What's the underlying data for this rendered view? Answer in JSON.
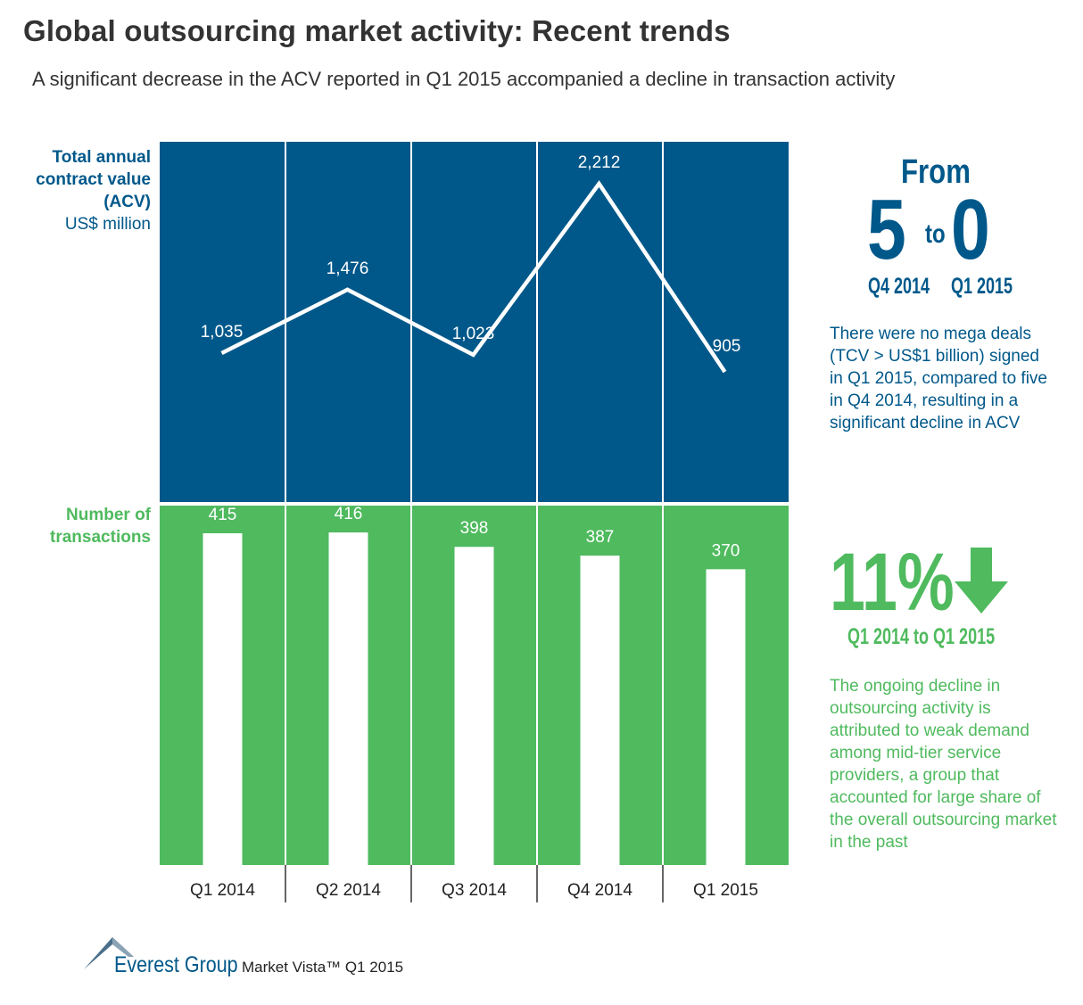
{
  "header": {
    "title": "Global outsourcing market activity: Recent trends",
    "subtitle": "A significant decrease in the ACV reported in Q1 2015 accompanied a decline in transaction activity"
  },
  "colors": {
    "acv_panel": "#00588a",
    "transactions_panel": "#4fba5e",
    "mark": "#ffffff"
  },
  "chart_data": [
    {
      "type": "line",
      "label_lines": [
        "Total annual",
        "contract value",
        "(ACV)"
      ],
      "unit": "US$ million",
      "categories": [
        "Q1 2014",
        "Q2 2014",
        "Q3 2014",
        "Q4 2014",
        "Q1 2015"
      ],
      "values": [
        1035,
        1476,
        1023,
        2212,
        905
      ],
      "data_labels": [
        "1,035",
        "1,476",
        "1,023",
        "2,212",
        "905"
      ]
    },
    {
      "type": "bar",
      "label_lines": [
        "Number of",
        "transactions"
      ],
      "categories": [
        "Q1 2014",
        "Q2 2014",
        "Q3 2014",
        "Q4 2014",
        "Q1 2015"
      ],
      "values": [
        415,
        416,
        398,
        387,
        370
      ],
      "data_labels": [
        "415",
        "416",
        "398",
        "387",
        "370"
      ]
    }
  ],
  "mega_deals": {
    "from_word": "From",
    "from_value": "5",
    "to_word": "to",
    "to_value": "0",
    "from_quarter": "Q4 2014",
    "to_quarter": "Q1 2015",
    "note": "There were no mega deals (TCV > US$1 billion) signed in Q1 2015, compared to five in Q4 2014, resulting in a significant decline in ACV"
  },
  "transaction_change": {
    "percent": "11%",
    "direction_icon": "down-arrow-icon",
    "range": "Q1 2014  to  Q1 2015",
    "note": "The ongoing decline in outsourcing activity is attributed to weak demand among mid-tier service providers, a group that accounted for large share of the overall outsourcing market in the past"
  },
  "footer": {
    "brand": "Everest Group",
    "source": "Market Vista™ Q1 2015"
  }
}
